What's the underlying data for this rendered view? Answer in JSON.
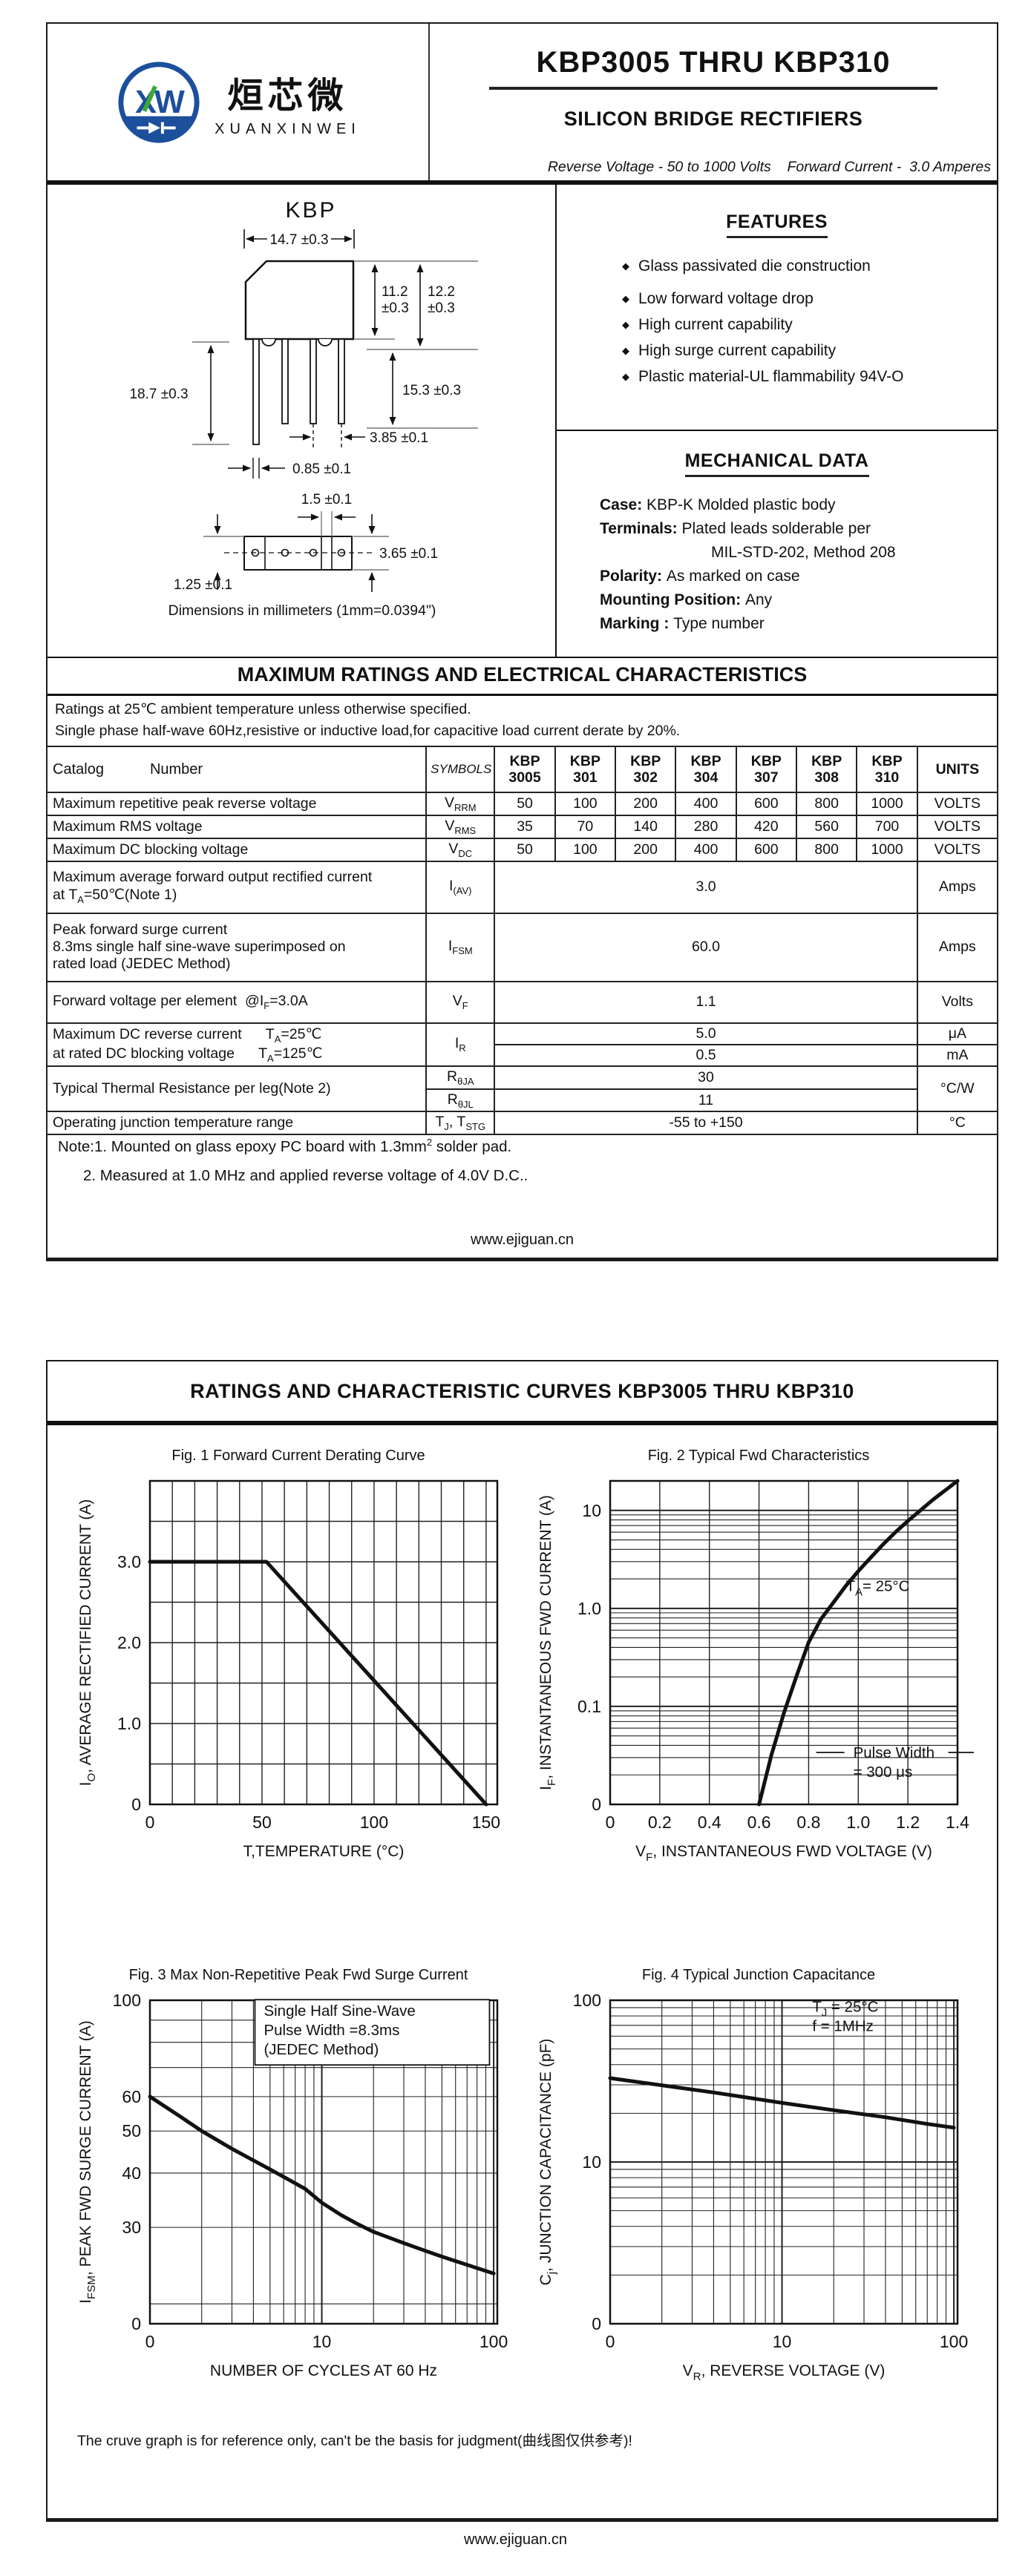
{
  "header": {
    "brand": {
      "monogram": "XW",
      "chinese": "烜芯微",
      "latin": "XUANXINWEI",
      "blue": "#1c4f9c",
      "green": "#3aaa35"
    },
    "title": "KBP3005 THRU KBP310",
    "subtitle": "SILICON BRIDGE RECTIFIERS",
    "tagline": "Reverse Voltage - 50 to 1000 Volts    Forward Current -  3.0 Amperes"
  },
  "drawing": {
    "pkg_label": "KBP",
    "dim_width": "14.7 ±0.3",
    "dim_h1a": "11.2",
    "dim_h1b": "±0.3",
    "dim_h2a": "12.2",
    "dim_h2b": "±0.3",
    "dim_lead_len": "18.7 ±0.3",
    "dim_lead_side": "15.3 ±0.3",
    "dim_pitch": "3.85 ±0.1",
    "dim_lead_w": "0.85 ±0.1",
    "dim_gap": "1.5 ±0.1",
    "dim_height3": "3.65 ±0.1",
    "dim_offset": "1.25 ±0.1",
    "caption": "Dimensions in millimeters (1mm=0.0394\")"
  },
  "features": {
    "title": "FEATURES",
    "items": [
      "Glass passivated die construction",
      "Low forward voltage drop",
      "High current capability",
      "High  surge current capability",
      "Plastic material-UL flammability 94V-O"
    ]
  },
  "mechanical": {
    "title": "MECHANICAL DATA",
    "lines": [
      {
        "label": "Case",
        "sep": ": ",
        "text": "KBP-K Molded plastic body",
        "indent": false
      },
      {
        "label": "Terminals",
        "sep": ": ",
        "text": "Plated leads solderable per",
        "indent": false
      },
      {
        "label": "",
        "sep": "",
        "text": "MIL-STD-202, Method 208",
        "indent": true
      },
      {
        "label": "Polarity",
        "sep": ": ",
        "text": "As marked on case",
        "indent": false
      },
      {
        "label": "Mounting Position",
        "sep": ": ",
        "text": "Any",
        "indent": false
      },
      {
        "label": "Marking ",
        "sep": ": ",
        "text": "Type number",
        "indent": false
      }
    ]
  },
  "ratings": {
    "title": "MAXIMUM RATINGS AND ELECTRICAL CHARACTERISTICS",
    "notes": [
      "Ratings at 25℃ ambient temperature unless otherwise specified.",
      "Single phase half-wave 60Hz,resistive or inductive load,for capacitive load current derate by 20%."
    ],
    "header": {
      "catalog": "Catalog",
      "number": "Number",
      "symbols": "SYMBOLS",
      "parts": [
        [
          "KBP",
          "3005"
        ],
        [
          "KBP",
          "301"
        ],
        [
          "KBP",
          "302"
        ],
        [
          "KBP",
          "304"
        ],
        [
          "KBP",
          "307"
        ],
        [
          "KBP",
          "308"
        ],
        [
          "KBP",
          "310"
        ]
      ],
      "units": "UNITS"
    },
    "rows": [
      {
        "mode": "each",
        "rh": 28,
        "name": [
          [
            {
              "t": "Maximum repetitive peak reverse voltage"
            }
          ]
        ],
        "symbol": [
          {
            "t": "V"
          },
          {
            "s": "RRM"
          }
        ],
        "values": [
          "50",
          "100",
          "200",
          "400",
          "600",
          "800",
          "1000"
        ],
        "units": "VOLTS"
      },
      {
        "mode": "each",
        "rh": 28,
        "name": [
          [
            {
              "t": "Maximum RMS voltage"
            }
          ]
        ],
        "symbol": [
          {
            "t": "V"
          },
          {
            "s": "RMS"
          }
        ],
        "values": [
          "35",
          "70",
          "140",
          "280",
          "420",
          "560",
          "700"
        ],
        "units": "VOLTS"
      },
      {
        "mode": "each",
        "rh": 28,
        "name": [
          [
            {
              "t": "Maximum DC blocking voltage"
            }
          ]
        ],
        "symbol": [
          {
            "t": "V"
          },
          {
            "s": "DC"
          }
        ],
        "values": [
          "50",
          "100",
          "200",
          "400",
          "600",
          "800",
          "1000"
        ],
        "units": "VOLTS"
      },
      {
        "mode": "span",
        "rh": 70,
        "name": [
          [
            {
              "t": "Maximum average forward output rectified current"
            }
          ],
          [
            {
              "t": "at T"
            },
            {
              "s": "A"
            },
            {
              "t": "=50℃(Note 1)"
            }
          ]
        ],
        "symbol": [
          {
            "t": "I"
          },
          {
            "s": "(AV)"
          }
        ],
        "value": "3.0",
        "units": "Amps"
      },
      {
        "mode": "span",
        "rh": 92,
        "name": [
          [
            {
              "t": "Peak forward surge current"
            }
          ],
          [
            {
              "t": "8.3ms single half sine-wave superimposed on"
            }
          ],
          [
            {
              "t": "rated load (JEDEC Method)"
            }
          ]
        ],
        "symbol": [
          {
            "t": "I"
          },
          {
            "s": "FSM"
          }
        ],
        "value": "60.0",
        "units": "Amps"
      },
      {
        "mode": "span",
        "rh": 56,
        "name": [
          [
            {
              "t": "Forward voltage per element  @I"
            },
            {
              "s": "F"
            },
            {
              "t": "=3.0A"
            }
          ]
        ],
        "symbol": [
          {
            "t": "V"
          },
          {
            "s": "F"
          }
        ],
        "value": "1.1",
        "units": "Volts"
      },
      {
        "mode": "stack",
        "rh": 29,
        "name": [
          [
            {
              "t": "Maximum DC reverse current      T"
            },
            {
              "s": "A"
            },
            {
              "t": "=25℃"
            }
          ],
          [
            {
              "t": "at rated DC blocking voltage      T"
            },
            {
              "s": "A"
            },
            {
              "t": "=125℃"
            }
          ]
        ],
        "symbol": [
          {
            "t": "I"
          },
          {
            "s": "R"
          }
        ],
        "values": [
          "5.0",
          "0.5"
        ],
        "units": [
          "μA",
          "mA"
        ]
      },
      {
        "mode": "stack2",
        "rh": 30,
        "name": [
          [
            {
              "t": "Typical Thermal Resistance per leg(Note 2)"
            }
          ]
        ],
        "symbols2": [
          [
            {
              "t": "R"
            },
            {
              "s": "θJA"
            }
          ],
          [
            {
              "t": "R"
            },
            {
              "s": "θJL"
            }
          ]
        ],
        "values": [
          "30",
          "11"
        ],
        "units": "°C/W"
      },
      {
        "mode": "span",
        "rh": 28,
        "name": [
          [
            {
              "t": "Operating junction temperature range"
            }
          ]
        ],
        "symbol": [
          {
            "t": "T"
          },
          {
            "s": "J"
          },
          {
            "t": ", T"
          },
          {
            "s": "STG"
          }
        ],
        "value": "-55 to +150",
        "units": "°C"
      }
    ]
  },
  "table_notes": [
    [
      {
        "t": "Note:1. Mounted on  glass epoxy  PC board with 1.3mm"
      },
      {
        "sup": "2"
      },
      {
        "t": " solder pad."
      }
    ],
    [
      {
        "t": "2. Measured at 1.0 MHz and applied reverse voltage of 4.0V D.C.."
      }
    ]
  ],
  "footer": "www.ejiguan.cn",
  "page2": {
    "title": "RATINGS AND CHARACTERISTIC CURVES KBP3005 THRU KBP310",
    "note": "The cruve graph is for reference only, can't be the basis for judgment(曲线图仅供参考)!"
  },
  "chart_data": [
    {
      "type": "line",
      "fig": "Fig. 1 Forward Current Derating Curve",
      "xlabel_parts": [
        {
          "t": "T,TEMPERATURE (°C)"
        }
      ],
      "ylabel_parts": [
        {
          "t": "I"
        },
        {
          "s": "O"
        },
        {
          "t": ", AVERAGE RECTIFIED CURRENT (A)"
        }
      ],
      "x": {
        "min": 0,
        "max": 155,
        "step": 10,
        "ticks": [
          {
            "v": 0,
            "l": "0"
          },
          {
            "v": 50,
            "l": "50"
          },
          {
            "v": 100,
            "l": "100"
          },
          {
            "v": 150,
            "l": "150"
          }
        ]
      },
      "y": {
        "min": 0,
        "max": 4,
        "step": 0.5,
        "ticks": [
          {
            "v": 0,
            "l": "0"
          },
          {
            "v": 1,
            "l": "1.0"
          },
          {
            "v": 2,
            "l": "2.0"
          },
          {
            "v": 3,
            "l": "3.0"
          }
        ]
      },
      "points": [
        [
          0,
          3
        ],
        [
          52,
          3
        ],
        [
          150,
          0
        ]
      ]
    },
    {
      "type": "line",
      "fig": "Fig. 2  Typical Fwd Characteristics",
      "xlabel_parts": [
        {
          "t": "V"
        },
        {
          "s": "F"
        },
        {
          "t": ", INSTANTANEOUS FWD VOLTAGE (V)"
        }
      ],
      "ylabel_parts": [
        {
          "t": "I"
        },
        {
          "s": "F"
        },
        {
          "t": ", INSTANTANEOUS FWD CURRENT (A)"
        }
      ],
      "x": {
        "min": 0,
        "max": 1.4,
        "step": 0.2,
        "ticks": [
          {
            "v": 0,
            "l": "0"
          },
          {
            "v": 0.2,
            "l": "0.2"
          },
          {
            "v": 0.4,
            "l": "0.4"
          },
          {
            "v": 0.6,
            "l": "0.6"
          },
          {
            "v": 0.8,
            "l": "0.8"
          },
          {
            "v": 1.0,
            "l": "1.0"
          },
          {
            "v": 1.2,
            "l": "1.2"
          },
          {
            "v": 1.4,
            "l": "1.4"
          }
        ]
      },
      "y": {
        "log": true,
        "min": 0.01,
        "max": 20,
        "ticks": [
          {
            "v": 0.01,
            "l": "0"
          },
          {
            "v": 0.1,
            "l": "0.1"
          },
          {
            "v": 1,
            "l": "1.0"
          },
          {
            "v": 10,
            "l": "10"
          }
        ]
      },
      "points": [
        [
          0.6,
          0.01
        ],
        [
          0.65,
          0.032
        ],
        [
          0.7,
          0.085
        ],
        [
          0.75,
          0.2
        ],
        [
          0.8,
          0.45
        ],
        [
          0.85,
          0.78
        ],
        [
          0.9,
          1.15
        ],
        [
          0.95,
          1.7
        ],
        [
          1.0,
          2.4
        ],
        [
          1.05,
          3.3
        ],
        [
          1.1,
          4.5
        ],
        [
          1.15,
          6.0
        ],
        [
          1.2,
          7.8
        ],
        [
          1.25,
          10.0
        ],
        [
          1.3,
          12.8
        ],
        [
          1.35,
          16.0
        ],
        [
          1.4,
          20.0
        ]
      ],
      "annotations": [
        {
          "x": 0.95,
          "y": 1.5,
          "lines": [
            [
              {
                "t": "T"
              },
              {
                "s": "A"
              },
              {
                "t": "=  25°C"
              }
            ]
          ]
        },
        {
          "x": 0.98,
          "y": 0.03,
          "lines": [
            [
              {
                "t": "Pulse Width"
              }
            ],
            [
              {
                "t": "=  300 μs"
              }
            ]
          ],
          "dashes": true
        }
      ]
    },
    {
      "type": "line",
      "fig": "Fig. 3  Max Non-Repetitive Peak Fwd Surge Current",
      "xlabel_parts": [
        {
          "t": "NUMBER OF CYCLES AT 60 Hz"
        }
      ],
      "ylabel_parts": [
        {
          "t": "I"
        },
        {
          "s": "FSM"
        },
        {
          "t": ",  PEAK FWD SURGE CURRENT (A)"
        }
      ],
      "x": {
        "log": true,
        "min": 1,
        "max": 105,
        "ticks": [
          {
            "v": 1,
            "l": "0"
          },
          {
            "v": 10,
            "l": "10"
          },
          {
            "v": 100,
            "l": "100"
          }
        ]
      },
      "y": {
        "log": true,
        "min": 18,
        "max": 100,
        "ticks": [
          {
            "v": 18,
            "l": "0"
          },
          {
            "v": 30,
            "l": "30"
          },
          {
            "v": 40,
            "l": "40"
          },
          {
            "v": 50,
            "l": "50"
          },
          {
            "v": 60,
            "l": "60"
          },
          {
            "v": 100,
            "l": "100"
          }
        ]
      },
      "points": [
        [
          1,
          60
        ],
        [
          1.5,
          54
        ],
        [
          2,
          50
        ],
        [
          3,
          45.5
        ],
        [
          4,
          42.8
        ],
        [
          5,
          40.8
        ],
        [
          6,
          39.2
        ],
        [
          8,
          36.8
        ],
        [
          10,
          34.2
        ],
        [
          13,
          32
        ],
        [
          16,
          30.6
        ],
        [
          20,
          29.3
        ],
        [
          30,
          27.6
        ],
        [
          40,
          26.5
        ],
        [
          50,
          25.7
        ],
        [
          70,
          24.6
        ],
        [
          100,
          23.5
        ]
      ],
      "annotations": [
        {
          "x": 4.6,
          "y": 92,
          "lines": [
            [
              {
                "t": "Single Half Sine-Wave"
              }
            ],
            [
              {
                "t": "Pulse Width =8.3ms"
              }
            ],
            [
              {
                "t": "(JEDEC Method)"
              }
            ]
          ],
          "box": true,
          "bw": 316,
          "bh": 88
        }
      ]
    },
    {
      "type": "line",
      "fig": "Fig. 4  Typical Junction Capacitance",
      "xlabel_parts": [
        {
          "t": "V"
        },
        {
          "s": "R"
        },
        {
          "t": ", REVERSE VOLTAGE (V)"
        }
      ],
      "ylabel_parts": [
        {
          "t": "C"
        },
        {
          "s": "j"
        },
        {
          "t": ", JUNCTION CAPACITANCE (pF)"
        }
      ],
      "x": {
        "log": true,
        "min": 1,
        "max": 105,
        "ticks": [
          {
            "v": 1,
            "l": "0"
          },
          {
            "v": 10,
            "l": "10"
          },
          {
            "v": 100,
            "l": "100"
          }
        ]
      },
      "y": {
        "log": true,
        "min": 1,
        "max": 100,
        "ticks": [
          {
            "v": 1,
            "l": "0"
          },
          {
            "v": 10,
            "l": "10"
          },
          {
            "v": 100,
            "l": "100"
          }
        ]
      },
      "points": [
        [
          1,
          33
        ],
        [
          2,
          29.8
        ],
        [
          4,
          26.9
        ],
        [
          7,
          24.6
        ],
        [
          10,
          23.2
        ],
        [
          20,
          20.9
        ],
        [
          40,
          18.9
        ],
        [
          70,
          17.2
        ],
        [
          100,
          16.3
        ]
      ],
      "annotations": [
        {
          "x": 15,
          "y": 85,
          "lines": [
            [
              {
                "t": "T"
              },
              {
                "s": "J"
              },
              {
                "t": " = 25°C"
              }
            ],
            [
              {
                "t": "f = 1MHz"
              }
            ]
          ]
        }
      ]
    }
  ]
}
